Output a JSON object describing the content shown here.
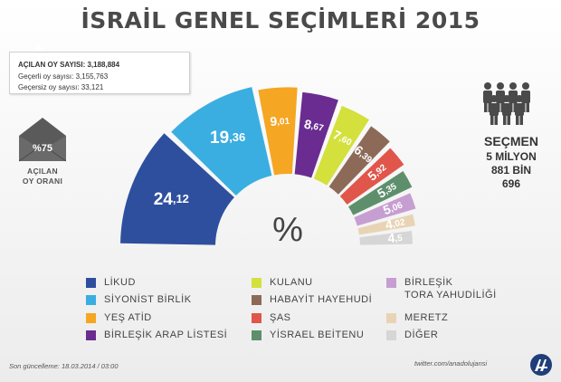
{
  "title": "İSRAİL GENEL SEÇİMLERİ 2015",
  "stats": {
    "line1": "AÇILAN OY SAYISI: 3,188,884",
    "line2": "Geçerli oy sayısı: 3,155,763",
    "line3": "Geçersiz oy sayısı: 33,121"
  },
  "turnout": {
    "percent": "%75",
    "label_line1": "AÇILAN",
    "label_line2": "OY ORANI"
  },
  "voters": {
    "label": "SEÇMEN",
    "line1": "5 MİLYON",
    "line2": "881 BİN",
    "line3": "696"
  },
  "center_symbol": "%",
  "chart_data": {
    "type": "pie",
    "title": "İSRAİL GENEL SEÇİMLERİ 2015",
    "layout": "semicircle-exploded",
    "categories": [
      "LİKUD",
      "SİYONİST BİRLİK",
      "YEŞ ATİD",
      "BİRLEŞİK ARAP LİSTESİ",
      "KULANU",
      "HABAYİT HAYEHUDİ",
      "ŞAS",
      "YİSRAEL BEİTENU",
      "BİRLEŞİK TORA YAHUDİLİĞİ",
      "MERETZ",
      "DİĞER"
    ],
    "values": [
      24.12,
      19.36,
      9.01,
      8.67,
      7.6,
      6.39,
      5.92,
      5.35,
      5.06,
      4.02,
      4.5
    ],
    "value_labels": [
      {
        "big": "24",
        "small": ",12"
      },
      {
        "big": "19",
        "small": ",36"
      },
      {
        "big": "9",
        "small": ",01"
      },
      {
        "big": "8",
        "small": ",67"
      },
      {
        "big": "7",
        "small": ",60"
      },
      {
        "big": "6",
        "small": ",39"
      },
      {
        "big": "5",
        "small": ",92"
      },
      {
        "big": "5",
        "small": ",35"
      },
      {
        "big": "5",
        "small": ",06"
      },
      {
        "big": "4",
        "small": ",02"
      },
      {
        "big": "4",
        "small": ",5"
      }
    ],
    "colors": [
      "#2e4f9e",
      "#3aaee0",
      "#f5a623",
      "#6a2c91",
      "#d4e03c",
      "#8c6a57",
      "#e0564b",
      "#5e8f6c",
      "#c79ed1",
      "#e8d4b4",
      "#d6d6d6"
    ],
    "label_colors": [
      "#ffffff",
      "#ffffff",
      "#ffffff",
      "#ffffff",
      "#ffffff",
      "#ffffff",
      "#ffffff",
      "#ffffff",
      "#ffffff",
      "#ffffff",
      "#ffffff"
    ]
  },
  "legend": [
    {
      "label": "LİKUD",
      "color": "#2e4f9e"
    },
    {
      "label": "SİYONİST BİRLİK",
      "color": "#3aaee0"
    },
    {
      "label": "YEŞ ATİD",
      "color": "#f5a623"
    },
    {
      "label": "BİRLEŞİK ARAP LİSTESİ",
      "color": "#6a2c91"
    },
    {
      "label": "KULANU",
      "color": "#d4e03c"
    },
    {
      "label": "HABAYİT HAYEHUDİ",
      "color": "#8c6a57"
    },
    {
      "label": "ŞAS",
      "color": "#e0564b"
    },
    {
      "label": "YİSRAEL BEİTENU",
      "color": "#5e8f6c"
    },
    {
      "label": "BİRLEŞİK",
      "label2": "TORA YAHUDİLİĞİ",
      "color": "#c79ed1"
    },
    {
      "label": "MERETZ",
      "color": "#e8d4b4"
    },
    {
      "label": "DİĞER",
      "color": "#d6d6d6"
    }
  ],
  "footer": {
    "updated": "Son güncelleme: 18.03.2014 / 03:00",
    "twitter": "twitter.com/anadolujansi"
  },
  "icons": {
    "envelope": "envelope-icon",
    "people": "people-group-icon",
    "logo": "anadolu-agency-logo"
  }
}
